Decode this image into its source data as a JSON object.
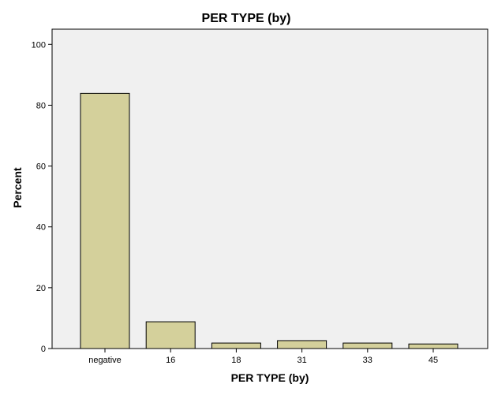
{
  "chart_data": {
    "type": "bar",
    "title": "PER TYPE (by)",
    "xlabel": "PER TYPE (by)",
    "ylabel": "Percent",
    "categories": [
      "negative",
      "16",
      "18",
      "31",
      "33",
      "45"
    ],
    "values": [
      83.9,
      8.8,
      1.8,
      2.6,
      1.8,
      1.5
    ],
    "ylim": [
      0,
      105
    ],
    "yticks": [
      "0",
      "20",
      "40",
      "60",
      "80",
      "100"
    ],
    "grid": false,
    "colors": {
      "bar_fill": "#d4d09b",
      "bar_stroke": "#000000",
      "plot_background": "#f0f0f0",
      "axis": "#000000"
    }
  }
}
